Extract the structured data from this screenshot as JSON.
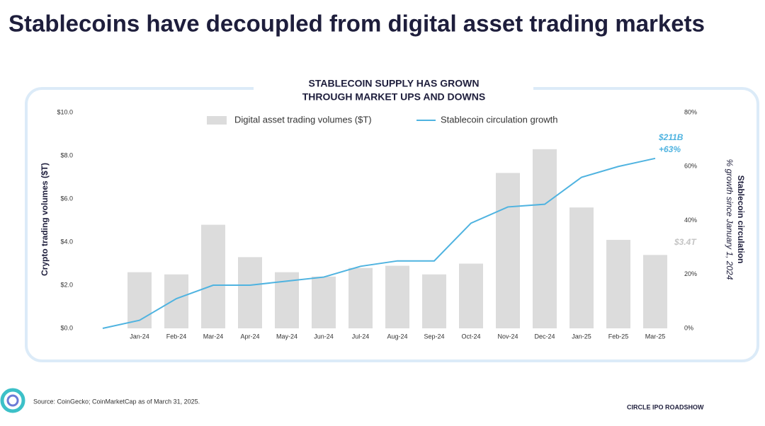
{
  "header": {
    "title": "Stablecoins have decoupled from digital asset trading markets"
  },
  "chart_data": {
    "type": "bar-line",
    "title_lines": [
      "STABLECOIN SUPPLY HAS GROWN",
      "THROUGH  MARKET UPS AND DOWNS"
    ],
    "y_label": "Crypto trading volumes ($T)",
    "y2_label": "Stablecoin circulation",
    "y2_sublabel": "% growth since January 1, 2024",
    "categories": [
      null,
      "Jan-24",
      "Feb-24",
      "Mar-24",
      "Apr-24",
      "May-24",
      "Jun-24",
      "Jul-24",
      "Aug-24",
      "Sep-24",
      "Oct-24",
      "Nov-24",
      "Dec-24",
      "Jan-25",
      "Feb-25",
      "Mar-25"
    ],
    "series": [
      {
        "name": "Digital asset trading volumes ($T)",
        "type": "bar",
        "color": "#dcdcdc",
        "values": [
          null,
          2.6,
          2.5,
          4.8,
          3.3,
          2.6,
          2.4,
          2.8,
          2.9,
          2.5,
          3.0,
          7.2,
          8.3,
          5.6,
          4.1,
          3.4
        ]
      },
      {
        "name": "Stablecoin circulation growth",
        "type": "line",
        "color": "#4fb3e0",
        "axis": "y2",
        "values": [
          0,
          3,
          11,
          16,
          16,
          17.5,
          19,
          23,
          25,
          25,
          39,
          45,
          46,
          56,
          60,
          63
        ]
      }
    ],
    "ylim": [
      0,
      10
    ],
    "yticks": [
      {
        "value": 0,
        "label": "$0.0"
      },
      {
        "value": 2,
        "label": "$2.0"
      },
      {
        "value": 4,
        "label": "$4.0"
      },
      {
        "value": 6,
        "label": "$6.0"
      },
      {
        "value": 8,
        "label": "$8.0"
      },
      {
        "value": 10,
        "label": "$10.0"
      }
    ],
    "y2lim": [
      0,
      80
    ],
    "y2ticks": [
      {
        "value": 0,
        "label": "0%"
      },
      {
        "value": 20,
        "label": "20%"
      },
      {
        "value": 40,
        "label": "40%"
      },
      {
        "value": 60,
        "label": "60%"
      },
      {
        "value": 80,
        "label": "80%"
      }
    ],
    "annotations": [
      "$211B",
      "+63%",
      "$3.4T"
    ]
  },
  "footer": {
    "source": "Source: CoinGecko; CoinMarketCap as of March 31, 2025.",
    "label": "CIRCLE IPO ROADSHOW"
  }
}
